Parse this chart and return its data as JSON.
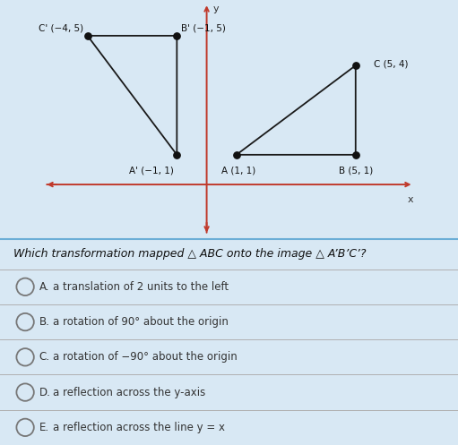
{
  "triangle_ABC": {
    "A": [
      1,
      1
    ],
    "B": [
      5,
      1
    ],
    "C": [
      5,
      4
    ]
  },
  "triangle_A1B1C1": {
    "A1": [
      -1,
      1
    ],
    "B1": [
      -1,
      5
    ],
    "C1": [
      -4,
      5
    ]
  },
  "axis_color": "#c0392b",
  "triangle_color": "#1a1a1a",
  "dot_color": "#111111",
  "bg_color_graph": "#d8e8f4",
  "bg_color_bottom": "#e8e8e8",
  "bg_color_options": "#e0e0e0",
  "xlim": [
    -5.5,
    7.0
  ],
  "ylim": [
    -1.8,
    6.2
  ],
  "options": [
    [
      "A.",
      "a translation of 2 units to the left"
    ],
    [
      "B.",
      "a rotation of 90° about the origin"
    ],
    [
      "C.",
      "a rotation of −90° about the origin"
    ],
    [
      "D.",
      "a reflection across the y-axis"
    ],
    [
      "E.",
      "a reflection across the line y = x"
    ]
  ]
}
